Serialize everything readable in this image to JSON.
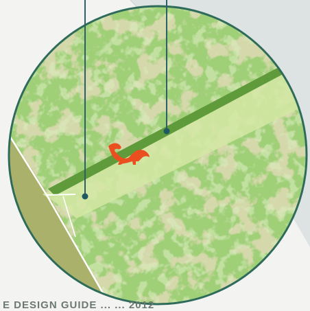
{
  "colors": {
    "page_background": "#f3f4f2",
    "panel_gray": "#dde2e3",
    "terrain_light": "#9fcf77",
    "terrain_mid": "#8bbf62",
    "terrain_dark": "#7fa94e",
    "terrain_olive": "#aab16a",
    "corridor_dark": "#5f9a3b",
    "corridor_light": "#d3e8a4",
    "circle_border": "#2f6b5b",
    "callout_line": "#2d5f66",
    "squirrel": "#ea4f1f",
    "road_white": "#ffffff"
  },
  "icons": {
    "species_marker": "squirrel-icon",
    "callout_pin": "callout-dot-icon"
  },
  "caption": {
    "text": "E DESIGN GUIDE ... ... 2012"
  }
}
